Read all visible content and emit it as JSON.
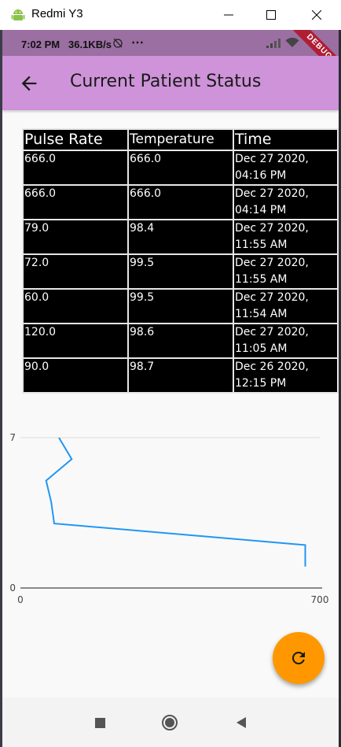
{
  "window": {
    "title": "Redmi Y3"
  },
  "status_bar": {
    "time": "7:02 PM",
    "speed": "36.1KB/s",
    "debug_label": "DEBUG"
  },
  "app_bar": {
    "title": "Current Patient Status"
  },
  "table": {
    "headers": [
      "Pulse Rate",
      "Temperature",
      "Time"
    ],
    "rows": [
      {
        "pulse": "666.0",
        "temp": "666.0",
        "time_line1": "Dec 27 2020,",
        "time_line2": "04:16 PM"
      },
      {
        "pulse": "666.0",
        "temp": "666.0",
        "time_line1": "Dec 27 2020,",
        "time_line2": "04:14 PM"
      },
      {
        "pulse": "79.0",
        "temp": "98.4",
        "time_line1": "Dec 27 2020,",
        "time_line2": "11:55 AM"
      },
      {
        "pulse": "72.0",
        "temp": "99.5",
        "time_line1": "Dec 27 2020,",
        "time_line2": "11:55 AM"
      },
      {
        "pulse": "60.0",
        "temp": "99.5",
        "time_line1": "Dec 27 2020,",
        "time_line2": "11:54 AM"
      },
      {
        "pulse": "120.0",
        "temp": "98.6",
        "time_line1": "Dec 27 2020,",
        "time_line2": "11:05 AM"
      },
      {
        "pulse": "90.0",
        "temp": "98.7",
        "time_line1": "Dec 26 2020,",
        "time_line2": "12:15 PM"
      }
    ]
  },
  "chart_data": {
    "type": "line",
    "title": "",
    "xlabel": "",
    "ylabel": "",
    "xlim": [
      0,
      700
    ],
    "ylim": [
      0,
      7
    ],
    "x_ticks": [
      "0",
      "700"
    ],
    "y_ticks": [
      "0",
      "7"
    ],
    "grid": true,
    "series": [
      {
        "color": "#2196f3",
        "points": [
          [
            666,
            1
          ],
          [
            666,
            2
          ],
          [
            79,
            3
          ],
          [
            72,
            4
          ],
          [
            60,
            5
          ],
          [
            120,
            6
          ],
          [
            90,
            7
          ]
        ]
      }
    ]
  },
  "fab": {
    "icon": "refresh-icon",
    "color": "#ff9800"
  },
  "nav": {
    "recents_icon": "square-icon",
    "home_icon": "circle-icon",
    "back_icon": "triangle-icon"
  }
}
